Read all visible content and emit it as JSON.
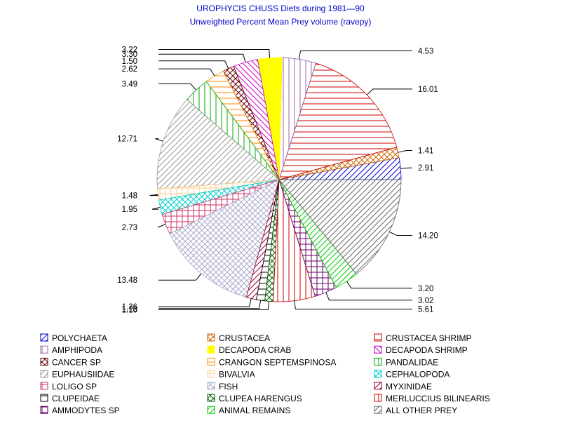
{
  "chart_data": {
    "type": "pie",
    "title": "UROPHYCIS CHUSS Diets during 1981—90",
    "subtitle": "Unweighted Percent Mean Prey volume (ravepy)",
    "slices": [
      {
        "name": "POLYCHAETA",
        "value": 2.91,
        "label": "2.91",
        "color": "#0000cc",
        "pattern": "diag-up"
      },
      {
        "name": "CRUSTACEA",
        "value": 1.41,
        "label": "1.41",
        "color": "#cc6600",
        "pattern": "cross-diag"
      },
      {
        "name": "CRUSTACEA SHRIMP",
        "value": 16.01,
        "label": "16.01",
        "color": "#cc0000",
        "pattern": "horiz"
      },
      {
        "name": "AMPHIPODA",
        "value": 4.53,
        "label": "4.53",
        "color": "#9966aa",
        "pattern": "vert"
      },
      {
        "name": "DECAPODA CRAB",
        "value": 3.22,
        "label": "3.22",
        "color": "#ffff00",
        "pattern": "solid"
      },
      {
        "name": "DECAPODA SHRIMP",
        "value": 3.3,
        "label": "3.30",
        "color": "#cc00cc",
        "pattern": "diag-down"
      },
      {
        "name": "CANCER SP",
        "value": 1.5,
        "label": "1.50",
        "color": "#660000",
        "pattern": "cross-diag"
      },
      {
        "name": "CRANGON SEPTEMSPINOSA",
        "value": 2.62,
        "label": "2.62",
        "color": "#ff8800",
        "pattern": "horiz"
      },
      {
        "name": "PANDALIDAE",
        "value": 3.49,
        "label": "3.49",
        "color": "#00aa00",
        "pattern": "vert"
      },
      {
        "name": "EUPHAUSIIDAE",
        "value": 12.71,
        "label": "12.71",
        "color": "#999999",
        "pattern": "diag-up"
      },
      {
        "name": "BIVALVIA",
        "value": 1.48,
        "label": "1.48",
        "color": "#ffcc88",
        "pattern": "grid"
      },
      {
        "name": "CEPHALOPODA",
        "value": 1.95,
        "label": "1.95",
        "color": "#00cccc",
        "pattern": "cross-diag"
      },
      {
        "name": "LOLIGO SP",
        "value": 2.73,
        "label": "2.73",
        "color": "#cc3366",
        "pattern": "grid"
      },
      {
        "name": "FISH",
        "value": 13.48,
        "label": "13.48",
        "color": "#aaaacc",
        "pattern": "cross-diag"
      },
      {
        "name": "MYXINIDAE",
        "value": 1.36,
        "label": "1.36",
        "color": "#990033",
        "pattern": "diag-up"
      },
      {
        "name": "CLUPEIDAE",
        "value": 1.13,
        "label": "1.13",
        "color": "#000000",
        "pattern": "horiz"
      },
      {
        "name": "CLUPEA HARENGUS",
        "value": 1.1,
        "label": "1.10",
        "color": "#006600",
        "pattern": "cross-diag"
      },
      {
        "name": "MERLUCCIUS BILINEARIS",
        "value": 5.61,
        "label": "5.61",
        "color": "#cc0000",
        "pattern": "vert"
      },
      {
        "name": "AMMODYTES SP",
        "value": 3.02,
        "label": "3.02",
        "color": "#660066",
        "pattern": "grid"
      },
      {
        "name": "ANIMAL REMAINS",
        "value": 3.2,
        "label": "3.20",
        "color": "#00cc00",
        "pattern": "diag-up"
      },
      {
        "name": "ALL OTHER PREY",
        "value": 14.2,
        "label": "14.20",
        "color": "#666666",
        "pattern": "diag-up"
      }
    ],
    "legend_placement": "bottom",
    "legend_columns": 3
  }
}
